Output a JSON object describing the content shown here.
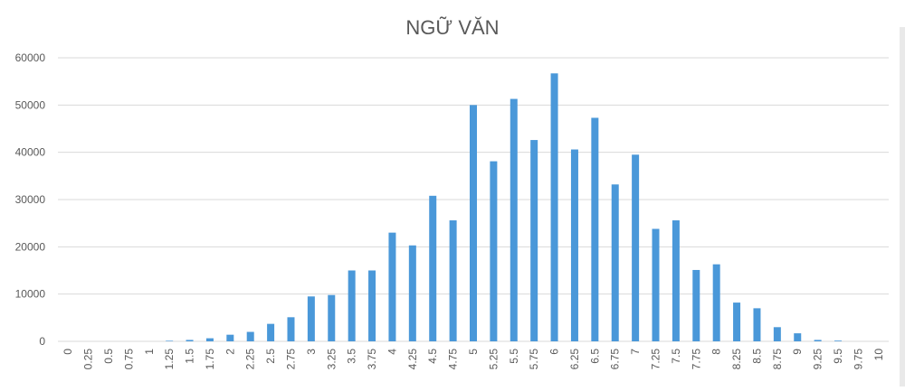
{
  "chart_data": {
    "type": "bar",
    "title": "NGỮ VĂN",
    "xlabel": "",
    "ylabel": "",
    "ylim": [
      0,
      60000
    ],
    "yticks": [
      0,
      10000,
      20000,
      30000,
      40000,
      50000,
      60000
    ],
    "grid": true,
    "legend": "none",
    "colors": {
      "bar": "#4a98d9",
      "grid": "#d9d9d9",
      "text": "#595959",
      "title": "#595959"
    },
    "categories": [
      "0",
      "0.25",
      "0.5",
      "0.75",
      "1",
      "1.25",
      "1.5",
      "1.75",
      "2",
      "2.25",
      "2.5",
      "2.75",
      "3",
      "3.25",
      "3.5",
      "3.75",
      "4",
      "4.25",
      "4.5",
      "4.75",
      "5",
      "5.25",
      "5.5",
      "5.75",
      "6",
      "6.25",
      "6.5",
      "6.75",
      "7",
      "7.25",
      "7.5",
      "7.75",
      "8",
      "8.25",
      "8.5",
      "8.75",
      "9",
      "9.25",
      "9.5",
      "9.75",
      "10"
    ],
    "values": [
      0,
      0,
      0,
      0,
      0,
      120,
      300,
      650,
      1400,
      2000,
      3700,
      5100,
      9500,
      9800,
      15000,
      15000,
      23000,
      20300,
      30800,
      25600,
      50000,
      38100,
      51300,
      42600,
      56700,
      40600,
      47300,
      33200,
      39500,
      23800,
      25600,
      15100,
      16300,
      8200,
      7000,
      3000,
      1700,
      300,
      150,
      0,
      0
    ]
  }
}
